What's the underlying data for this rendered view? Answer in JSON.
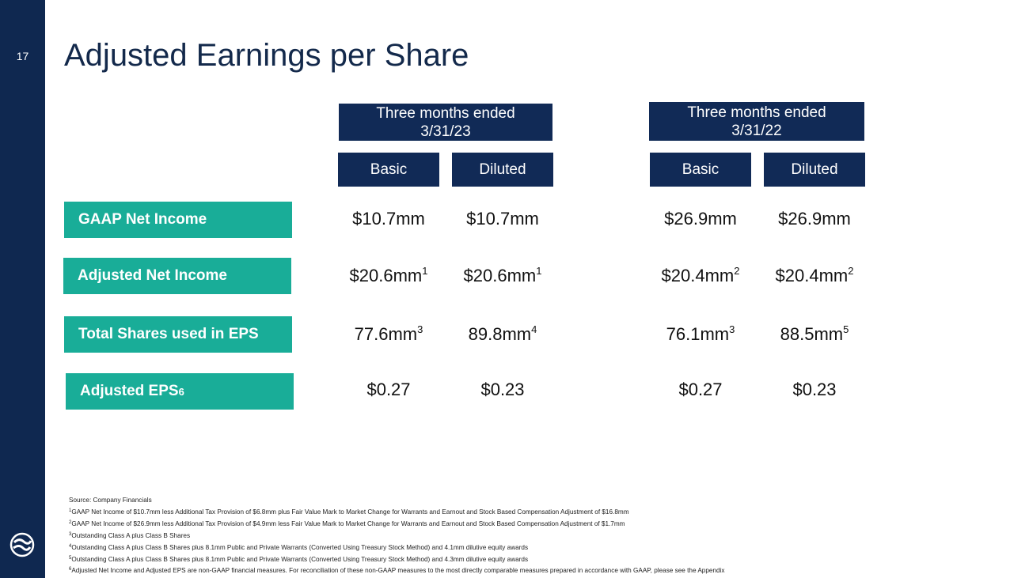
{
  "page_number": "17",
  "title": "Adjusted Earnings per Share",
  "periods": [
    {
      "line1": "Three months ended",
      "line2": "3/31/23",
      "basic": "Basic",
      "diluted": "Diluted"
    },
    {
      "line1": "Three months ended",
      "line2": "3/31/22",
      "basic": "Basic",
      "diluted": "Diluted"
    }
  ],
  "rows": [
    {
      "label": "GAAP Net Income",
      "label_sup": "",
      "values": [
        {
          "v": "$10.7mm",
          "s": ""
        },
        {
          "v": "$10.7mm",
          "s": ""
        },
        {
          "v": "$26.9mm",
          "s": ""
        },
        {
          "v": "$26.9mm",
          "s": ""
        }
      ]
    },
    {
      "label": "Adjusted Net Income",
      "label_sup": "",
      "values": [
        {
          "v": "$20.6mm",
          "s": "1"
        },
        {
          "v": "$20.6mm",
          "s": "1"
        },
        {
          "v": "$20.4mm",
          "s": "2"
        },
        {
          "v": "$20.4mm",
          "s": "2"
        }
      ]
    },
    {
      "label": "Total Shares used in EPS",
      "label_sup": "",
      "values": [
        {
          "v": "77.6mm",
          "s": "3"
        },
        {
          "v": "89.8mm",
          "s": "4"
        },
        {
          "v": "76.1mm",
          "s": "3"
        },
        {
          "v": "88.5mm",
          "s": "5"
        }
      ]
    },
    {
      "label": "Adjusted EPS",
      "label_sup": "6",
      "values": [
        {
          "v": "$0.27",
          "s": ""
        },
        {
          "v": "$0.23",
          "s": ""
        },
        {
          "v": "$0.27",
          "s": ""
        },
        {
          "v": "$0.23",
          "s": ""
        }
      ]
    }
  ],
  "source": "Source: Company Financials",
  "footnotes": [
    {
      "n": "1",
      "text": "GAAP Net Income of $10.7mm less Additional Tax Provision of $6.8mm plus Fair Value Mark to Market Change for Warrants and Earnout and Stock Based Compensation Adjustment of $16.8mm"
    },
    {
      "n": "2",
      "text": "GAAP Net Income of $26.9mm less Additional Tax Provision of $4.9mm less Fair Value Mark to Market Change for Warrants and Earnout and Stock Based Compensation Adjustment of $1.7mm"
    },
    {
      "n": "3",
      "text": "Outstanding Class A plus Class B Shares"
    },
    {
      "n": "4",
      "text": "Outstanding Class A plus Class B Shares plus 8.1mm Public and Private Warrants (Converted Using Treasury Stock Method) and 4.1mm dilutive equity awards"
    },
    {
      "n": "5",
      "text": "Outstanding Class A plus Class B Shares plus 8.1mm Public and Private Warrants (Converted Using Treasury Stock Method) and 4.3mm dilutive equity awards"
    },
    {
      "n": "6",
      "text": "Adjusted Net Income and Adjusted EPS are non-GAAP financial measures.  For reconciliation of these non-GAAP measures to the most directly comparable measures prepared in accordance with GAAP, please see the Appendix"
    }
  ],
  "colors": {
    "navy": "#0f2850",
    "teal": "#19ad98"
  }
}
